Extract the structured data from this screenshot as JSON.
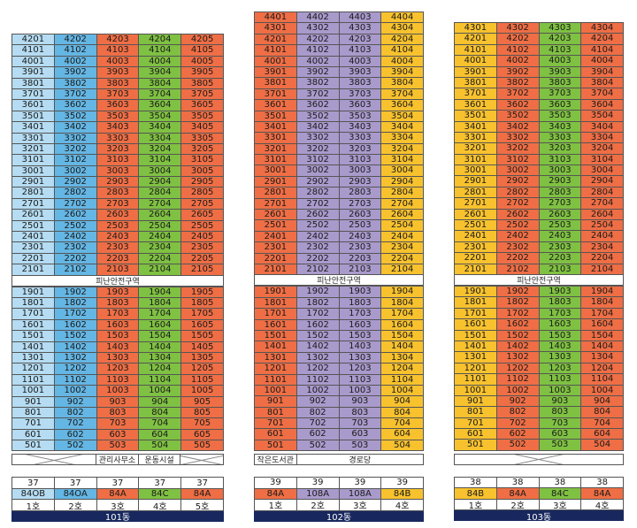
{
  "buildings": [
    {
      "name": "101동",
      "cols": 5,
      "upper_units": [
        "4201",
        "4202",
        "4203",
        "4204",
        "4205",
        "4101",
        "4102",
        "4103",
        "4104",
        "4105",
        "4001",
        "4002",
        "4003",
        "4004",
        "4005",
        "3901",
        "3902",
        "3903",
        "3904",
        "3905",
        "3801",
        "3802",
        "3803",
        "3804",
        "3805",
        "3701",
        "3702",
        "3703",
        "3704",
        "3705",
        "3601",
        "3602",
        "3603",
        "3604",
        "3605",
        "3501",
        "3502",
        "3503",
        "3504",
        "3505",
        "3401",
        "3402",
        "3403",
        "3404",
        "3405",
        "3301",
        "3302",
        "3303",
        "3304",
        "3305",
        "3201",
        "3202",
        "3203",
        "3204",
        "3205",
        "3101",
        "3102",
        "3103",
        "3104",
        "3105",
        "3001",
        "3002",
        "3003",
        "3004",
        "3005",
        "2901",
        "2902",
        "2903",
        "2904",
        "2905",
        "2801",
        "2802",
        "2803",
        "2804",
        "2805",
        "2701",
        "2702",
        "2703",
        "2704",
        "2705",
        "2601",
        "2602",
        "2603",
        "2604",
        "2605",
        "2501",
        "2502",
        "2503",
        "2504",
        "2505",
        "2401",
        "2402",
        "2403",
        "2404",
        "2405",
        "2301",
        "2302",
        "2303",
        "2304",
        "2305",
        "2201",
        "2202",
        "2203",
        "2204",
        "2205",
        "2101",
        "2102",
        "2103",
        "2104",
        "2105"
      ],
      "refuge": "피난안전구역",
      "lower_units": [
        "1901",
        "1902",
        "1903",
        "1904",
        "1905",
        "1801",
        "1802",
        "1803",
        "1804",
        "1805",
        "1701",
        "1702",
        "1703",
        "1704",
        "1705",
        "1601",
        "1602",
        "1603",
        "1604",
        "1605",
        "1501",
        "1502",
        "1503",
        "1504",
        "1505",
        "1401",
        "1402",
        "1403",
        "1404",
        "1405",
        "1301",
        "1302",
        "1303",
        "1304",
        "1305",
        "1201",
        "1202",
        "1203",
        "1204",
        "1205",
        "1101",
        "1102",
        "1103",
        "1104",
        "1105",
        "1001",
        "1002",
        "1003",
        "1004",
        "1005",
        "901",
        "902",
        "903",
        "904",
        "905",
        "801",
        "802",
        "803",
        "804",
        "805",
        "701",
        "702",
        "703",
        "704",
        "705",
        "601",
        "602",
        "603",
        "604",
        "605",
        "501",
        "502",
        "503",
        "504",
        "505"
      ],
      "facilities": [
        "",
        "",
        "관리사무소",
        "운동시설",
        ""
      ],
      "heights": [
        "37",
        "37",
        "37",
        "37",
        "37"
      ],
      "types": [
        "84OB",
        "84OA",
        "84A",
        "84C",
        "84A"
      ],
      "ho": [
        "1호",
        "2호",
        "3호",
        "4호",
        "5호"
      ]
    },
    {
      "name": "102동",
      "cols": 4,
      "upper_units": [
        "4401",
        "4402",
        "4403",
        "4404",
        "4301",
        "4302",
        "4303",
        "4304",
        "4201",
        "4202",
        "4203",
        "4204",
        "4101",
        "4102",
        "4103",
        "4104",
        "4001",
        "4002",
        "4003",
        "4004",
        "3901",
        "3902",
        "3903",
        "3904",
        "3801",
        "3802",
        "3803",
        "3804",
        "3701",
        "3702",
        "3703",
        "3704",
        "3601",
        "3602",
        "3603",
        "3604",
        "3501",
        "3502",
        "3503",
        "3504",
        "3401",
        "3402",
        "3403",
        "3404",
        "3301",
        "3302",
        "3303",
        "3304",
        "3201",
        "3202",
        "3203",
        "3204",
        "3101",
        "3102",
        "3103",
        "3104",
        "3001",
        "3002",
        "3003",
        "3004",
        "2901",
        "2902",
        "2903",
        "2904",
        "2801",
        "2802",
        "2803",
        "2804",
        "2701",
        "2702",
        "2703",
        "2704",
        "2601",
        "2602",
        "2603",
        "2604",
        "2501",
        "2502",
        "2503",
        "2504",
        "2401",
        "2402",
        "2403",
        "2404",
        "2301",
        "2302",
        "2303",
        "2304",
        "2201",
        "2202",
        "2203",
        "2204",
        "2101",
        "2102",
        "2103",
        "2104"
      ],
      "refuge": "피난안전구역",
      "lower_units": [
        "1901",
        "1902",
        "1903",
        "1904",
        "1801",
        "1802",
        "1803",
        "1804",
        "1701",
        "1702",
        "1703",
        "1704",
        "1601",
        "1602",
        "1603",
        "1604",
        "1501",
        "1502",
        "1503",
        "1504",
        "1401",
        "1402",
        "1403",
        "1404",
        "1301",
        "1302",
        "1303",
        "1304",
        "1201",
        "1202",
        "1203",
        "1204",
        "1101",
        "1102",
        "1103",
        "1104",
        "1001",
        "1002",
        "1003",
        "1004",
        "901",
        "902",
        "903",
        "904",
        "801",
        "802",
        "803",
        "804",
        "701",
        "702",
        "703",
        "704",
        "601",
        "602",
        "603",
        "604",
        "501",
        "502",
        "503",
        "504"
      ],
      "facilities": [
        "작은도서관",
        "경로당"
      ],
      "heights": [
        "39",
        "39",
        "39",
        "39"
      ],
      "types": [
        "84A",
        "108A",
        "108A",
        "84B"
      ],
      "ho": [
        "1호",
        "2호",
        "3호",
        "4호"
      ]
    },
    {
      "name": "103동",
      "cols": 4,
      "upper_units": [
        "4301",
        "4302",
        "4303",
        "4304",
        "4201",
        "4202",
        "4203",
        "4204",
        "4101",
        "4102",
        "4103",
        "4104",
        "4001",
        "4002",
        "4003",
        "4004",
        "3901",
        "3902",
        "3903",
        "3904",
        "3801",
        "3802",
        "3803",
        "3804",
        "3701",
        "3702",
        "3703",
        "3704",
        "3601",
        "3602",
        "3603",
        "3604",
        "3501",
        "3502",
        "3503",
        "3504",
        "3401",
        "3402",
        "3403",
        "3404",
        "3301",
        "3302",
        "3303",
        "3304",
        "3201",
        "3202",
        "3203",
        "3204",
        "3101",
        "3102",
        "3103",
        "3104",
        "3001",
        "3002",
        "3003",
        "3004",
        "2901",
        "2902",
        "2903",
        "2904",
        "2801",
        "2802",
        "2803",
        "2804",
        "2701",
        "2702",
        "2703",
        "2704",
        "2601",
        "2602",
        "2603",
        "2604",
        "2501",
        "2502",
        "2503",
        "2504",
        "2401",
        "2402",
        "2403",
        "2404",
        "2301",
        "2302",
        "2303",
        "2304",
        "2201",
        "2202",
        "2203",
        "2204",
        "2101",
        "2102",
        "2103",
        "2104"
      ],
      "refuge": "피난안전구역",
      "lower_units": [
        "1901",
        "1902",
        "1903",
        "1904",
        "1801",
        "1802",
        "1803",
        "1804",
        "1701",
        "1702",
        "1703",
        "1704",
        "1601",
        "1602",
        "1603",
        "1604",
        "1501",
        "1502",
        "1503",
        "1504",
        "1401",
        "1402",
        "1403",
        "1404",
        "1301",
        "1302",
        "1303",
        "1304",
        "1201",
        "1202",
        "1203",
        "1204",
        "1101",
        "1102",
        "1103",
        "1104",
        "1001",
        "1002",
        "1003",
        "1004",
        "901",
        "902",
        "903",
        "904",
        "801",
        "802",
        "803",
        "804",
        "701",
        "702",
        "703",
        "704",
        "601",
        "602",
        "603",
        "604",
        "501",
        "502",
        "503",
        "504"
      ],
      "facilities": [],
      "heights": [
        "38",
        "38",
        "38",
        "38"
      ],
      "types": [
        "84B",
        "84A",
        "84C",
        "84A"
      ],
      "ho": [
        "1호",
        "2호",
        "3호",
        "4호"
      ]
    }
  ],
  "type_colors": {
    "84OB": "#b5dcf2",
    "84OA": "#64b6e4",
    "84A": "#ef6e45",
    "84C": "#7fc142",
    "108A": "#a99acc",
    "84B": "#f8c22e"
  }
}
